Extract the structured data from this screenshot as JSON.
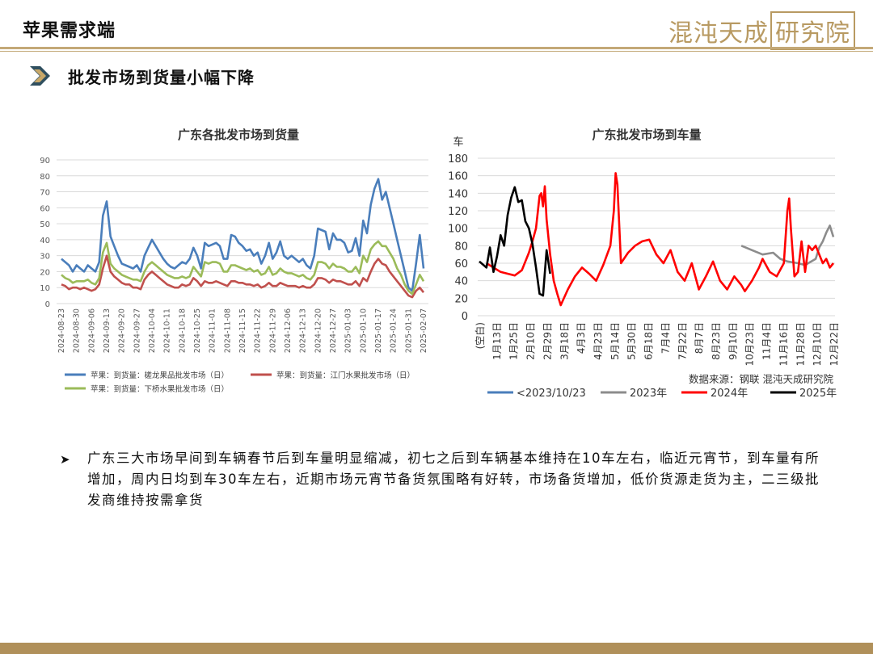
{
  "page": {
    "title": "苹果需求端",
    "logo_text": "混沌天成",
    "logo_box_text": "研究院",
    "section_title": "批发市场到货量小幅下降",
    "bullet": "广东三大市场早间到车辆春节后到车量明显缩减，初七之后到车辆基本维持在10车左右，临近元宵节，到车量有所增加，周内日均到车30车左右，近期市场元宵节备货氛围略有好转，市场备货增加，低价货源走货为主，二三级批发商维持按需拿货"
  },
  "chart_data": [
    {
      "type": "line",
      "title": "广东各批发市场到货量",
      "ylim": [
        0,
        90
      ],
      "yticks": [
        0,
        10,
        20,
        30,
        40,
        50,
        60,
        70,
        80,
        90
      ],
      "xticks": [
        "2024-08-23",
        "2024-08-30",
        "2024-09-06",
        "2024-09-13",
        "2024-09-20",
        "2024-09-27",
        "2024-10-04",
        "2024-10-11",
        "2024-10-18",
        "2024-10-25",
        "2024-11-01",
        "2024-11-08",
        "2024-11-15",
        "2024-11-22",
        "2024-11-29",
        "2024-12-06",
        "2024-12-13",
        "2024-12-20",
        "2024-12-27",
        "2025-01-03",
        "2025-01-10",
        "2025-01-17",
        "2025-01-24",
        "2025-01-31",
        "2025-02-07"
      ],
      "series": [
        {
          "name": "苹果：到货量：槎龙果品批发市场（日）",
          "color": "#4a7ebb",
          "values": [
            28,
            26,
            24,
            20,
            24,
            22,
            20,
            24,
            22,
            20,
            26,
            55,
            64,
            42,
            36,
            30,
            25,
            24,
            23,
            22,
            24,
            20,
            30,
            35,
            40,
            36,
            32,
            28,
            25,
            23,
            22,
            24,
            26,
            25,
            28,
            35,
            30,
            22,
            38,
            36,
            37,
            38,
            36,
            28,
            28,
            43,
            42,
            38,
            36,
            33,
            34,
            30,
            32,
            25,
            30,
            38,
            28,
            32,
            39,
            30,
            28,
            30,
            28,
            26,
            28,
            24,
            22,
            30,
            47,
            46,
            45,
            34,
            44,
            40,
            40,
            38,
            32,
            33,
            41,
            30,
            52,
            44,
            62,
            72,
            78,
            65,
            70,
            60,
            50,
            40,
            30,
            20,
            10,
            8,
            25,
            43,
            22
          ]
        },
        {
          "name": "苹果：到货量：江门水果批发市场（日）",
          "color": "#c0504d",
          "values": [
            12,
            11,
            9,
            10,
            10,
            9,
            10,
            9,
            8,
            9,
            12,
            22,
            30,
            20,
            17,
            15,
            13,
            12,
            12,
            10,
            10,
            9,
            15,
            18,
            20,
            18,
            16,
            14,
            12,
            11,
            10,
            10,
            12,
            11,
            12,
            16,
            14,
            11,
            14,
            13,
            13,
            14,
            13,
            12,
            11,
            14,
            14,
            13,
            13,
            12,
            12,
            11,
            12,
            10,
            11,
            13,
            11,
            11,
            13,
            12,
            11,
            11,
            11,
            10,
            11,
            10,
            10,
            12,
            16,
            16,
            15,
            13,
            15,
            14,
            14,
            13,
            12,
            12,
            14,
            11,
            16,
            14,
            20,
            25,
            28,
            25,
            24,
            20,
            17,
            14,
            11,
            8,
            5,
            4,
            8,
            10,
            7
          ]
        },
        {
          "name": "苹果：到货量：下桥水果批发市场（日）",
          "color": "#9bbb59",
          "values": [
            18,
            16,
            15,
            13,
            14,
            14,
            14,
            15,
            13,
            12,
            16,
            32,
            38,
            25,
            22,
            20,
            18,
            17,
            16,
            15,
            15,
            14,
            20,
            24,
            26,
            24,
            22,
            20,
            18,
            17,
            16,
            16,
            17,
            16,
            17,
            23,
            20,
            17,
            26,
            25,
            26,
            26,
            25,
            20,
            20,
            24,
            24,
            23,
            22,
            21,
            22,
            20,
            21,
            18,
            19,
            23,
            18,
            19,
            22,
            20,
            19,
            19,
            18,
            17,
            18,
            16,
            15,
            18,
            26,
            26,
            25,
            22,
            25,
            23,
            23,
            22,
            20,
            20,
            23,
            19,
            30,
            26,
            34,
            37,
            39,
            36,
            36,
            32,
            28,
            22,
            18,
            12,
            8,
            6,
            12,
            18,
            14
          ]
        }
      ]
    },
    {
      "type": "line",
      "title": "广东批发市场到车量",
      "ylabel": "车",
      "ylim": [
        0,
        180
      ],
      "yticks": [
        0,
        20,
        40,
        60,
        80,
        100,
        120,
        140,
        160,
        180
      ],
      "xticks": [
        "(空白)",
        "1月13日",
        "1月25日",
        "2月10日",
        "2月29日",
        "3月18日",
        "4月3日",
        "4月23日",
        "5月14日",
        "5月30日",
        "6月18日",
        "7月4日",
        "7月22日",
        "8月7日",
        "8月23日",
        "9月10日",
        "10月23日",
        "11月4日",
        "11月16日",
        "11月28日",
        "12月10日",
        "12月22日"
      ],
      "source": "数据来源：钢联 混沌天成研究院",
      "series": [
        {
          "name": "<2023/10/23",
          "color": "#4a7ebb",
          "values": []
        },
        {
          "name": "2023年",
          "color": "#8c8c8c",
          "values": [
            [
              0.74,
              80
            ],
            [
              0.77,
              75
            ],
            [
              0.8,
              70
            ],
            [
              0.83,
              72
            ],
            [
              0.85,
              65
            ],
            [
              0.87,
              62
            ],
            [
              0.9,
              60
            ],
            [
              0.92,
              58
            ],
            [
              0.95,
              65
            ],
            [
              0.96,
              78
            ],
            [
              0.97,
              85
            ],
            [
              0.98,
              95
            ],
            [
              0.99,
              103
            ],
            [
              1.0,
              90
            ]
          ]
        },
        {
          "name": "2024年",
          "color": "#ff0000",
          "values": [
            [
              0.02,
              60
            ],
            [
              0.04,
              55
            ],
            [
              0.06,
              50
            ],
            [
              0.08,
              48
            ],
            [
              0.1,
              46
            ],
            [
              0.12,
              52
            ],
            [
              0.14,
              72
            ],
            [
              0.15,
              85
            ],
            [
              0.16,
              100
            ],
            [
              0.17,
              137
            ],
            [
              0.175,
              140
            ],
            [
              0.18,
              125
            ],
            [
              0.185,
              148
            ],
            [
              0.19,
              110
            ],
            [
              0.2,
              70
            ],
            [
              0.21,
              40
            ],
            [
              0.22,
              25
            ],
            [
              0.23,
              12
            ],
            [
              0.25,
              30
            ],
            [
              0.27,
              45
            ],
            [
              0.29,
              55
            ],
            [
              0.31,
              48
            ],
            [
              0.33,
              40
            ],
            [
              0.35,
              58
            ],
            [
              0.37,
              80
            ],
            [
              0.38,
              120
            ],
            [
              0.385,
              163
            ],
            [
              0.39,
              150
            ],
            [
              0.4,
              60
            ],
            [
              0.42,
              72
            ],
            [
              0.44,
              80
            ],
            [
              0.46,
              85
            ],
            [
              0.48,
              87
            ],
            [
              0.5,
              70
            ],
            [
              0.52,
              60
            ],
            [
              0.54,
              75
            ],
            [
              0.56,
              50
            ],
            [
              0.58,
              40
            ],
            [
              0.6,
              60
            ],
            [
              0.62,
              30
            ],
            [
              0.64,
              45
            ],
            [
              0.66,
              62
            ],
            [
              0.68,
              40
            ],
            [
              0.7,
              30
            ],
            [
              0.72,
              45
            ],
            [
              0.74,
              35
            ],
            [
              0.75,
              28
            ],
            [
              0.77,
              40
            ],
            [
              0.79,
              55
            ],
            [
              0.8,
              65
            ],
            [
              0.82,
              50
            ],
            [
              0.84,
              45
            ],
            [
              0.86,
              60
            ],
            [
              0.87,
              120
            ],
            [
              0.875,
              134
            ],
            [
              0.88,
              100
            ],
            [
              0.89,
              45
            ],
            [
              0.9,
              50
            ],
            [
              0.91,
              85
            ],
            [
              0.92,
              50
            ],
            [
              0.93,
              80
            ],
            [
              0.94,
              75
            ],
            [
              0.95,
              80
            ],
            [
              0.96,
              70
            ],
            [
              0.97,
              60
            ],
            [
              0.98,
              65
            ],
            [
              0.99,
              55
            ],
            [
              1.0,
              60
            ]
          ]
        },
        {
          "name": "2025年",
          "color": "#000000",
          "values": [
            [
              0.0,
              62
            ],
            [
              0.02,
              55
            ],
            [
              0.03,
              78
            ],
            [
              0.04,
              50
            ],
            [
              0.05,
              68
            ],
            [
              0.06,
              92
            ],
            [
              0.07,
              80
            ],
            [
              0.08,
              115
            ],
            [
              0.09,
              135
            ],
            [
              0.1,
              147
            ],
            [
              0.11,
              130
            ],
            [
              0.12,
              132
            ],
            [
              0.13,
              108
            ],
            [
              0.14,
              100
            ],
            [
              0.15,
              82
            ],
            [
              0.16,
              55
            ],
            [
              0.17,
              25
            ],
            [
              0.18,
              23
            ],
            [
              0.19,
              75
            ],
            [
              0.2,
              48
            ]
          ]
        }
      ]
    }
  ]
}
